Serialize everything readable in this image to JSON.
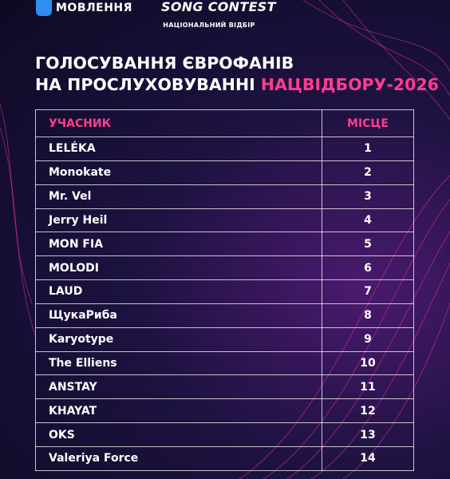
{
  "header": {
    "broadcaster": "МОВЛЕННЯ",
    "contest": "SONG CONTEST",
    "subtitle": "НАЦІОНАЛЬНИЙ ВІДБІР"
  },
  "title": {
    "line1": "ГОЛОСУВАННЯ ЄВРОФАНІВ",
    "line2": "НА ПРОСЛУХОВУВАННІ ",
    "highlight": "НАЦВІДБОРУ-2026"
  },
  "table": {
    "columns": [
      "УЧАСНИК",
      "МІСЦЕ"
    ],
    "rows": [
      [
        "LELÉKA",
        1
      ],
      [
        "Monokate",
        2
      ],
      [
        "Mr. Vel",
        3
      ],
      [
        "Jerry Heil",
        4
      ],
      [
        "MON FIA",
        5
      ],
      [
        "MOLODI",
        6
      ],
      [
        "LAUD",
        7
      ],
      [
        "ЩукаРиба",
        8
      ],
      [
        "Karyotype",
        9
      ],
      [
        "The Elliens",
        10
      ],
      [
        "ANSTAY",
        11
      ],
      [
        "KHAYAT",
        12
      ],
      [
        "OKS",
        13
      ],
      [
        "Valeriya Force",
        14
      ]
    ]
  }
}
